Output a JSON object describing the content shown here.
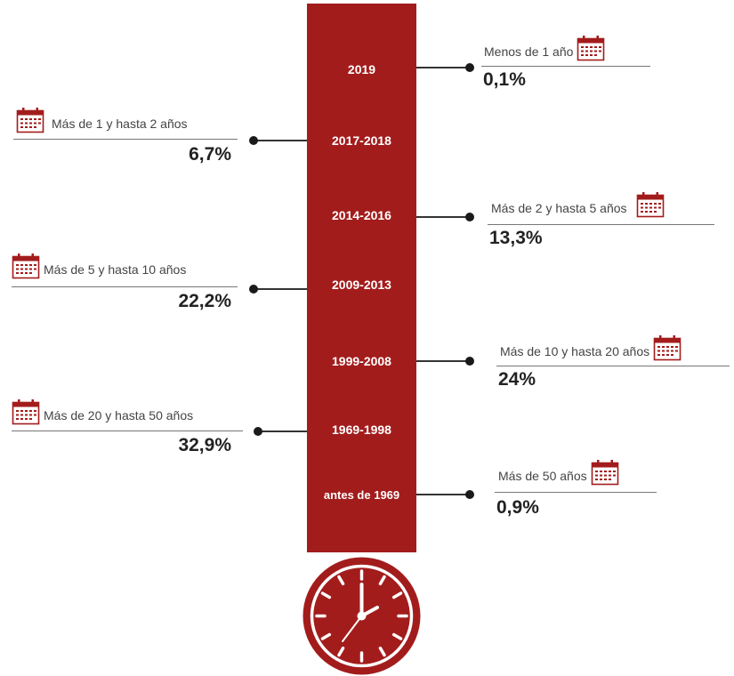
{
  "colors": {
    "accent": "#a31c1c",
    "text": "#222222",
    "line": "#777777"
  },
  "timeline": {
    "years": [
      "2019",
      "2017-2018",
      "2014-2016",
      "2009-2013",
      "1999-2008",
      "1969-1998",
      "antes de 1969"
    ]
  },
  "entries": [
    {
      "label": "Menos de 1 año",
      "value": "0,1%",
      "side": "right",
      "icon": "calendar-icon"
    },
    {
      "label": "Más de 1 y hasta 2 años",
      "value": "6,7%",
      "side": "left",
      "icon": "calendar-icon"
    },
    {
      "label": "Más de 2 y hasta 5 años",
      "value": "13,3%",
      "side": "right",
      "icon": "calendar-icon"
    },
    {
      "label": "Más de 5 y hasta 10 años",
      "value": "22,2%",
      "side": "left",
      "icon": "calendar-icon"
    },
    {
      "label": "Más de 10 y hasta 20 años",
      "value": "24%",
      "side": "right",
      "icon": "calendar-icon"
    },
    {
      "label": "Más de 20 y hasta 50 años",
      "value": "32,9%",
      "side": "left",
      "icon": "calendar-icon"
    },
    {
      "label": "Más de 50 años",
      "value": "0,9%",
      "side": "right",
      "icon": "calendar-icon"
    }
  ],
  "footer_icon": "clock-icon"
}
